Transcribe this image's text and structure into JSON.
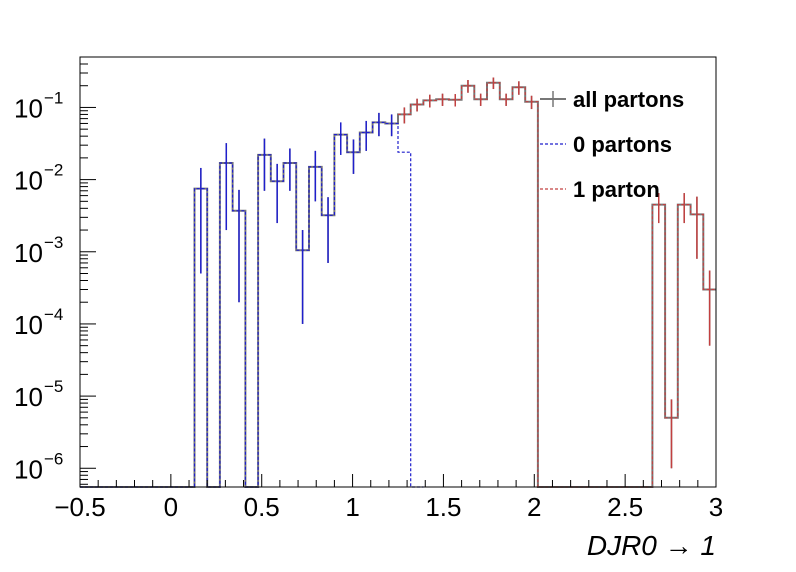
{
  "chart_data": {
    "type": "line",
    "title": "",
    "xlabel": "DJR0 → 1",
    "ylabel": "",
    "xlim": [
      -0.5,
      3.0
    ],
    "ylim": [
      5.5e-07,
      0.5
    ],
    "yscale": "log",
    "grid": false,
    "x_ticks": [
      {
        "value": -0.5,
        "label": "−0.5"
      },
      {
        "value": 0,
        "label": "0"
      },
      {
        "value": 0.5,
        "label": "0.5"
      },
      {
        "value": 1,
        "label": "1"
      },
      {
        "value": 1.5,
        "label": "1.5"
      },
      {
        "value": 2,
        "label": "2"
      },
      {
        "value": 2.5,
        "label": "2.5"
      },
      {
        "value": 3,
        "label": "3"
      }
    ],
    "y_ticks": [
      {
        "value": 1e-06,
        "base": "10",
        "exp": "−6"
      },
      {
        "value": 1e-05,
        "base": "10",
        "exp": "−5"
      },
      {
        "value": 0.0001,
        "base": "10",
        "exp": "−4"
      },
      {
        "value": 0.001,
        "base": "10",
        "exp": "−3"
      },
      {
        "value": 0.01,
        "base": "10",
        "exp": "−2"
      },
      {
        "value": 0.1,
        "base": "10",
        "exp": "−1"
      }
    ],
    "legend_position": "top-right",
    "bin_width": 0.07,
    "series": [
      {
        "name": "all partons",
        "color": "#777777",
        "style": "solid",
        "bins": [
          {
            "x0": -0.5,
            "y": 0
          },
          {
            "x0": 0.13,
            "y": 0.0075,
            "err": 0.007
          },
          {
            "x0": 0.2,
            "y": 0
          },
          {
            "x0": 0.27,
            "y": 0.017,
            "err": 0.015
          },
          {
            "x0": 0.34,
            "y": 0.0037,
            "err": 0.0035
          },
          {
            "x0": 0.41,
            "y": 0
          },
          {
            "x0": 0.48,
            "y": 0.022,
            "err": 0.015
          },
          {
            "x0": 0.55,
            "y": 0.0095,
            "err": 0.007
          },
          {
            "x0": 0.62,
            "y": 0.017,
            "err": 0.01
          },
          {
            "x0": 0.69,
            "y": 0.00105,
            "err": 0.00095
          },
          {
            "x0": 0.76,
            "y": 0.015,
            "err": 0.01
          },
          {
            "x0": 0.83,
            "y": 0.0032,
            "err": 0.0025
          },
          {
            "x0": 0.9,
            "y": 0.042,
            "err": 0.02
          },
          {
            "x0": 0.97,
            "y": 0.024,
            "err": 0.012
          },
          {
            "x0": 1.04,
            "y": 0.045,
            "err": 0.02
          },
          {
            "x0": 1.11,
            "y": 0.062,
            "err": 0.022
          },
          {
            "x0": 1.18,
            "y": 0.06,
            "err": 0.02
          },
          {
            "x0": 1.25,
            "y": 0.08,
            "err": 0.02
          },
          {
            "x0": 1.32,
            "y": 0.11,
            "err": 0.022
          },
          {
            "x0": 1.39,
            "y": 0.125,
            "err": 0.025
          },
          {
            "x0": 1.46,
            "y": 0.13,
            "err": 0.025
          },
          {
            "x0": 1.53,
            "y": 0.128,
            "err": 0.025
          },
          {
            "x0": 1.6,
            "y": 0.2,
            "err": 0.04
          },
          {
            "x0": 1.67,
            "y": 0.13,
            "err": 0.025
          },
          {
            "x0": 1.74,
            "y": 0.22,
            "err": 0.04
          },
          {
            "x0": 1.81,
            "y": 0.13,
            "err": 0.025
          },
          {
            "x0": 1.88,
            "y": 0.19,
            "err": 0.04
          },
          {
            "x0": 1.95,
            "y": 0.12,
            "err": 0.025
          },
          {
            "x0": 2.02,
            "y": 0
          },
          {
            "x0": 2.65,
            "y": 0.0045,
            "err": 0.002
          },
          {
            "x0": 2.72,
            "y": 5e-06,
            "err": 4e-06
          },
          {
            "x0": 2.79,
            "y": 0.0045,
            "err": 0.002
          },
          {
            "x0": 2.86,
            "y": 0.0033,
            "err": 0.0025
          },
          {
            "x0": 2.93,
            "y": 0.0003,
            "err": 0.00025
          }
        ]
      },
      {
        "name": "0 partons",
        "color": "#1f1fcc",
        "style": "dashed",
        "bins": [
          {
            "x0": -0.5,
            "y": 0
          },
          {
            "x0": 0.13,
            "y": 0.0075,
            "err": 0.007
          },
          {
            "x0": 0.2,
            "y": 0
          },
          {
            "x0": 0.27,
            "y": 0.017,
            "err": 0.015
          },
          {
            "x0": 0.34,
            "y": 0.0037,
            "err": 0.0035
          },
          {
            "x0": 0.41,
            "y": 0
          },
          {
            "x0": 0.48,
            "y": 0.022,
            "err": 0.015
          },
          {
            "x0": 0.55,
            "y": 0.0095,
            "err": 0.007
          },
          {
            "x0": 0.62,
            "y": 0.017,
            "err": 0.01
          },
          {
            "x0": 0.69,
            "y": 0.00105,
            "err": 0.00095
          },
          {
            "x0": 0.76,
            "y": 0.015,
            "err": 0.01
          },
          {
            "x0": 0.83,
            "y": 0.0032,
            "err": 0.0025
          },
          {
            "x0": 0.9,
            "y": 0.042,
            "err": 0.02
          },
          {
            "x0": 0.97,
            "y": 0.024,
            "err": 0.012
          },
          {
            "x0": 1.04,
            "y": 0.045,
            "err": 0.02
          },
          {
            "x0": 1.11,
            "y": 0.062,
            "err": 0.022
          },
          {
            "x0": 1.18,
            "y": 0.06,
            "err": 0.02
          },
          {
            "x0": 1.25,
            "y": 0.024
          },
          {
            "x0": 1.32,
            "y": 0
          }
        ]
      },
      {
        "name": "1 parton",
        "color": "#c24040",
        "style": "dashed",
        "bins": [
          {
            "x0": 1.25,
            "y": 0.08,
            "err": 0.02
          },
          {
            "x0": 1.32,
            "y": 0.11,
            "err": 0.022
          },
          {
            "x0": 1.39,
            "y": 0.125,
            "err": 0.025
          },
          {
            "x0": 1.46,
            "y": 0.13,
            "err": 0.025
          },
          {
            "x0": 1.53,
            "y": 0.128,
            "err": 0.025
          },
          {
            "x0": 1.6,
            "y": 0.2,
            "err": 0.04
          },
          {
            "x0": 1.67,
            "y": 0.13,
            "err": 0.025
          },
          {
            "x0": 1.74,
            "y": 0.22,
            "err": 0.04
          },
          {
            "x0": 1.81,
            "y": 0.13,
            "err": 0.025
          },
          {
            "x0": 1.88,
            "y": 0.19,
            "err": 0.04
          },
          {
            "x0": 1.95,
            "y": 0.12,
            "err": 0.025
          },
          {
            "x0": 2.02,
            "y": 0
          },
          {
            "x0": 2.65,
            "y": 0.0045,
            "err": 0.002
          },
          {
            "x0": 2.72,
            "y": 5e-06,
            "err": 4e-06
          },
          {
            "x0": 2.79,
            "y": 0.0045,
            "err": 0.002
          },
          {
            "x0": 2.86,
            "y": 0.0033,
            "err": 0.0025
          },
          {
            "x0": 2.93,
            "y": 0.0003,
            "err": 0.00025
          }
        ]
      }
    ]
  }
}
